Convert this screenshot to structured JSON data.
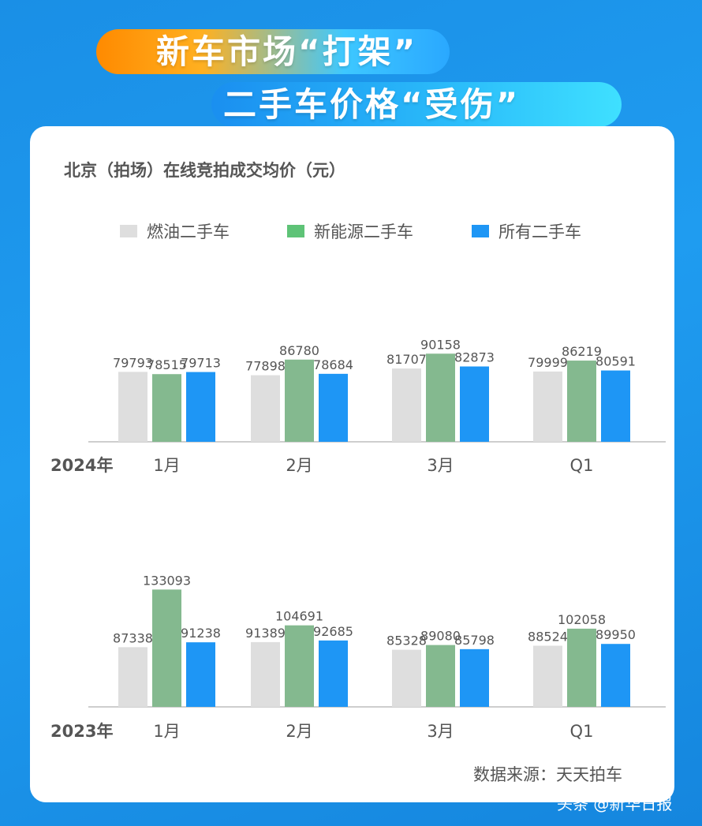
{
  "banner": {
    "line1": "新车市场“打架”",
    "line2": "二手车价格“受伤”"
  },
  "title": "北京（拍场）在线竞拍成交均价（元）",
  "source": "数据来源：天天拍车",
  "watermark": "头条 @新华日报",
  "colors": {
    "fuel": "#dedede",
    "nev": "#84b98f",
    "all": "#1e96f5",
    "legend_nev": "#5ec377"
  },
  "legend": [
    {
      "label": "燃油二手车",
      "color": "#dedede"
    },
    {
      "label": "新能源二手车",
      "color": "#5ec377"
    },
    {
      "label": "所有二手车",
      "color": "#1e96f5"
    }
  ],
  "chart_data": [
    {
      "type": "bar",
      "year_label": "2024年",
      "categories": [
        "1月",
        "2月",
        "3月",
        "Q1"
      ],
      "series": [
        {
          "name": "燃油二手车",
          "values": [
            79793,
            77898,
            81707,
            79999
          ]
        },
        {
          "name": "新能源二手车",
          "values": [
            78515,
            86780,
            90158,
            86219
          ]
        },
        {
          "name": "所有二手车",
          "values": [
            79713,
            78684,
            82873,
            80591
          ]
        }
      ]
    },
    {
      "type": "bar",
      "year_label": "2023年",
      "categories": [
        "1月",
        "2月",
        "3月",
        "Q1"
      ],
      "series": [
        {
          "name": "燃油二手车",
          "values": [
            87338,
            91389,
            85328,
            88524
          ]
        },
        {
          "name": "新能源二手车",
          "values": [
            133093,
            104691,
            89080,
            102058
          ]
        },
        {
          "name": "所有二手车",
          "values": [
            91238,
            92685,
            85798,
            89950
          ]
        }
      ]
    }
  ]
}
